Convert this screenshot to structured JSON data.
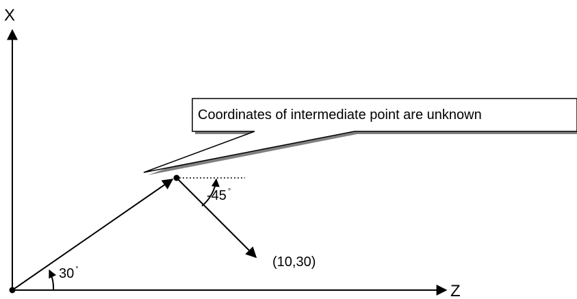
{
  "axes": {
    "vertical_label": "X",
    "horizontal_label": "Z"
  },
  "angles": {
    "first": "30",
    "second": "-45",
    "degree_symbol": "°"
  },
  "endpoint_label": "(10,30)",
  "callout": {
    "text": "Coordinates of intermediate point are unknown"
  },
  "colors": {
    "line": "#000000",
    "shadow": "#808080",
    "background": "#ffffff"
  }
}
